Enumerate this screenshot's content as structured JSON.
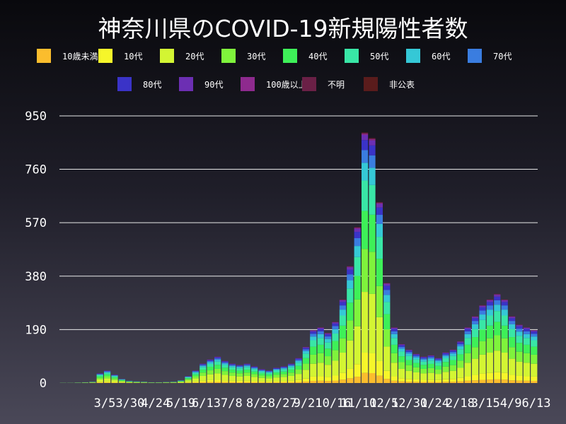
{
  "chart_data": {
    "type": "bar",
    "stacked": true,
    "title": "神奈川県のCOVID-19新規陽性者数",
    "xlabel": "",
    "ylabel": "",
    "ylim": [
      0,
      980
    ],
    "y_ticks": [
      0,
      190,
      380,
      570,
      760,
      950
    ],
    "grid": "horizontal",
    "legend_position": "top",
    "x_tick_labels": [
      "3/5",
      "3/30",
      "4/24",
      "5/19",
      "6/13",
      "7/8",
      "8/2",
      "8/27",
      "9/21",
      "10/16",
      "11/10",
      "12/5",
      "12/30",
      "1/24",
      "2/18",
      "3/15",
      "4/9",
      "6/13"
    ],
    "series": [
      {
        "name": "10歳未満",
        "color": "#fbbd2d"
      },
      {
        "name": "10代",
        "color": "#f6f62a"
      },
      {
        "name": "20代",
        "color": "#d3f533"
      },
      {
        "name": "30代",
        "color": "#7ff33c"
      },
      {
        "name": "40代",
        "color": "#3ef058"
      },
      {
        "name": "50代",
        "color": "#39e6a6"
      },
      {
        "name": "60代",
        "color": "#35c8d6"
      },
      {
        "name": "70代",
        "color": "#3a7de0"
      },
      {
        "name": "80代",
        "color": "#3a33c7"
      },
      {
        "name": "90代",
        "color": "#6c2fb3"
      },
      {
        "name": "100歳以上",
        "color": "#8e2a8e"
      },
      {
        "name": "不明",
        "color": "#6a2046"
      },
      {
        "name": "非公表",
        "color": "#5a1c1c"
      }
    ],
    "weekly_totals": [
      1,
      1,
      2,
      3,
      5,
      35,
      45,
      30,
      15,
      8,
      6,
      5,
      3,
      3,
      4,
      5,
      10,
      25,
      45,
      70,
      85,
      95,
      80,
      70,
      65,
      70,
      60,
      50,
      45,
      55,
      60,
      70,
      90,
      130,
      190,
      200,
      180,
      220,
      300,
      420,
      560,
      900,
      880,
      650,
      360,
      200,
      140,
      120,
      105,
      95,
      100,
      90,
      110,
      120,
      150,
      200,
      240,
      280,
      300,
      320,
      300,
      240,
      210,
      200,
      190
    ],
    "series_shares": [
      0.04,
      0.08,
      0.24,
      0.17,
      0.15,
      0.12,
      0.07,
      0.05,
      0.04,
      0.02,
      0.005,
      0.004,
      0.001
    ]
  }
}
